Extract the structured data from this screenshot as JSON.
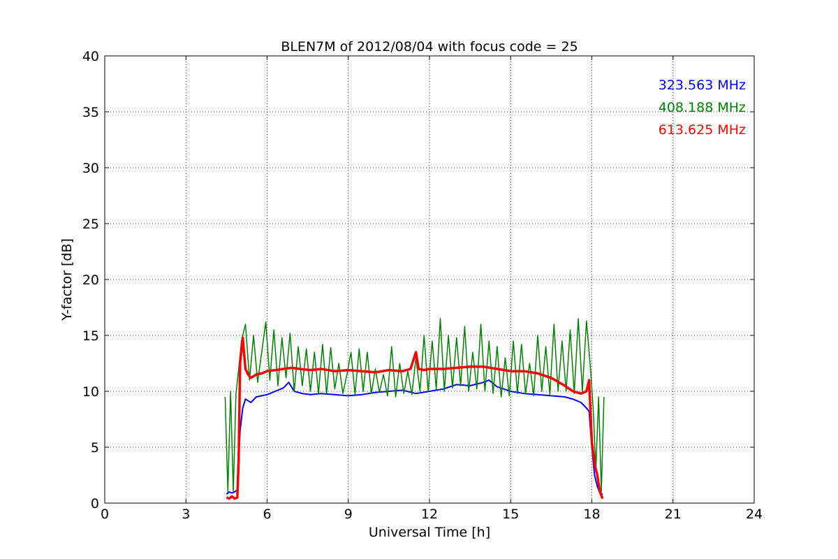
{
  "chart_data": {
    "type": "line",
    "title": "BLEN7M of 2012/08/04 with focus code = 25",
    "xlabel": "Universal Time [h]",
    "ylabel": "Y-factor [dB]",
    "xlim": [
      0,
      24
    ],
    "ylim": [
      0,
      40
    ],
    "xticks": [
      0,
      3,
      6,
      9,
      12,
      15,
      18,
      21,
      24
    ],
    "yticks": [
      0,
      5,
      10,
      15,
      20,
      25,
      30,
      35,
      40
    ],
    "grid": true,
    "legend_position": "top-right",
    "series": [
      {
        "name": "323.563 MHz",
        "color": "#0000ff",
        "x": [
          4.5,
          4.6,
          4.7,
          4.8,
          4.9,
          5.0,
          5.1,
          5.2,
          5.4,
          5.6,
          5.8,
          6.0,
          6.3,
          6.6,
          6.8,
          7.0,
          7.3,
          7.6,
          8.0,
          8.5,
          9.0,
          9.5,
          10.0,
          10.5,
          11.0,
          11.5,
          12.0,
          12.5,
          13.0,
          13.5,
          14.0,
          14.2,
          14.5,
          15.0,
          15.5,
          16.0,
          16.5,
          17.0,
          17.3,
          17.6,
          17.8,
          17.9,
          18.0,
          18.1,
          18.2,
          18.3,
          18.4
        ],
        "y": [
          0.8,
          1.0,
          0.9,
          1.0,
          1.2,
          6.5,
          8.5,
          9.3,
          9.0,
          9.5,
          9.6,
          9.7,
          10.0,
          10.3,
          10.8,
          10.0,
          9.8,
          9.7,
          9.8,
          9.7,
          9.6,
          9.7,
          9.9,
          10.0,
          10.1,
          9.8,
          10.0,
          10.2,
          10.6,
          10.5,
          10.8,
          11.0,
          10.4,
          10.0,
          9.8,
          9.7,
          9.6,
          9.5,
          9.3,
          9.0,
          8.5,
          8.2,
          5.0,
          2.5,
          1.5,
          0.9,
          0.8
        ]
      },
      {
        "name": "408.188 MHz",
        "color": "#008000",
        "x": [
          4.45,
          4.55,
          4.65,
          4.75,
          4.85,
          4.95,
          5.05,
          5.2,
          5.35,
          5.5,
          5.65,
          5.8,
          5.95,
          6.1,
          6.25,
          6.4,
          6.55,
          6.7,
          6.85,
          7.0,
          7.15,
          7.3,
          7.45,
          7.6,
          7.75,
          7.9,
          8.05,
          8.2,
          8.35,
          8.5,
          8.65,
          8.8,
          8.95,
          9.1,
          9.25,
          9.4,
          9.55,
          9.7,
          9.85,
          10.0,
          10.15,
          10.3,
          10.45,
          10.6,
          10.75,
          10.9,
          11.05,
          11.2,
          11.35,
          11.5,
          11.65,
          11.8,
          11.95,
          12.1,
          12.25,
          12.4,
          12.55,
          12.7,
          12.85,
          13.0,
          13.15,
          13.3,
          13.45,
          13.6,
          13.75,
          13.9,
          14.05,
          14.2,
          14.35,
          14.5,
          14.65,
          14.8,
          14.95,
          15.1,
          15.25,
          15.4,
          15.55,
          15.7,
          15.85,
          16.0,
          16.15,
          16.3,
          16.45,
          16.6,
          16.75,
          16.9,
          17.05,
          17.2,
          17.35,
          17.5,
          17.65,
          17.8,
          17.95,
          18.05,
          18.15,
          18.25,
          18.35,
          18.45
        ],
        "y": [
          9.5,
          1.0,
          10.0,
          1.0,
          9.8,
          12.0,
          14.5,
          16.0,
          11.0,
          15.0,
          10.8,
          13.5,
          16.2,
          11.0,
          15.5,
          10.5,
          14.8,
          11.2,
          15.2,
          10.0,
          14.0,
          10.5,
          13.8,
          10.0,
          13.5,
          9.8,
          14.2,
          9.8,
          13.9,
          10.2,
          12.5,
          9.8,
          11.5,
          13.5,
          9.7,
          13.8,
          10.0,
          13.5,
          9.8,
          12.0,
          9.9,
          11.5,
          9.6,
          14.0,
          9.5,
          12.5,
          9.8,
          11.8,
          9.7,
          13.0,
          10.0,
          15.0,
          10.0,
          14.5,
          10.2,
          16.5,
          10.0,
          15.0,
          10.3,
          14.8,
          10.5,
          15.8,
          10.0,
          13.5,
          10.2,
          16.0,
          10.0,
          14.5,
          9.8,
          14.0,
          9.5,
          13.0,
          9.6,
          14.5,
          9.8,
          14.2,
          9.8,
          12.5,
          9.6,
          15.0,
          10.0,
          14.0,
          9.7,
          16.0,
          10.0,
          14.5,
          10.0,
          15.5,
          9.8,
          16.5,
          10.0,
          16.3,
          12.0,
          8.5,
          3.0,
          9.5,
          1.0,
          9.5
        ]
      },
      {
        "name": "613.625 MHz",
        "color": "#ff0000",
        "x": [
          4.5,
          4.6,
          4.7,
          4.8,
          4.9,
          4.95,
          5.0,
          5.1,
          5.2,
          5.3,
          5.4,
          5.6,
          5.8,
          6.0,
          6.3,
          6.6,
          6.9,
          7.2,
          7.6,
          8.0,
          8.5,
          9.0,
          9.5,
          10.0,
          10.5,
          11.0,
          11.3,
          11.5,
          11.6,
          11.8,
          12.0,
          12.5,
          13.0,
          13.5,
          14.0,
          14.5,
          15.0,
          15.5,
          16.0,
          16.5,
          17.0,
          17.3,
          17.6,
          17.8,
          17.9,
          18.0,
          18.1,
          18.2,
          18.3,
          18.4
        ],
        "y": [
          0.5,
          0.4,
          0.6,
          0.4,
          0.5,
          4.0,
          12.5,
          14.8,
          12.0,
          11.5,
          11.2,
          11.5,
          11.6,
          11.8,
          11.9,
          12.0,
          12.1,
          12.0,
          11.9,
          12.0,
          11.8,
          11.9,
          11.8,
          11.7,
          11.9,
          11.8,
          12.0,
          13.5,
          12.0,
          11.9,
          12.0,
          12.0,
          12.1,
          12.2,
          12.2,
          12.0,
          11.8,
          11.8,
          11.6,
          11.2,
          10.5,
          10.0,
          9.8,
          10.0,
          11.0,
          5.5,
          3.5,
          2.5,
          1.0,
          0.4
        ]
      }
    ]
  }
}
